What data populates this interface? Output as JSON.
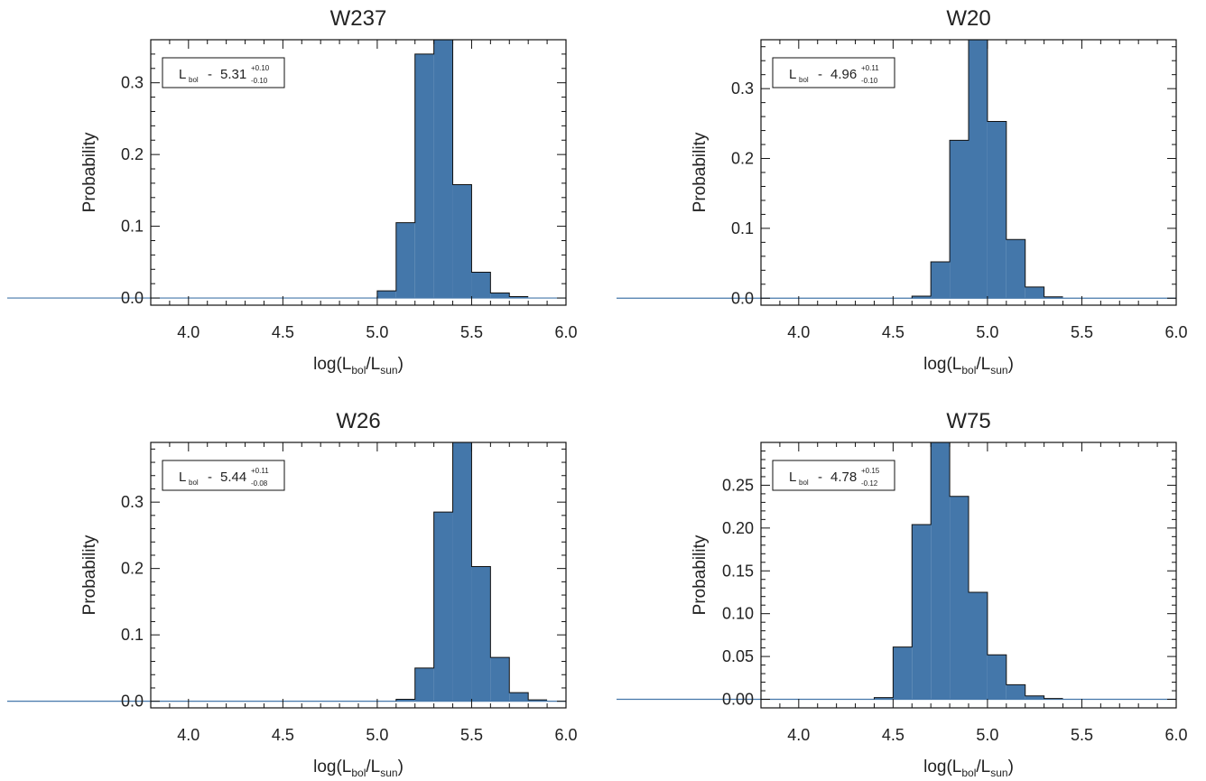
{
  "chart_data": [
    {
      "type": "bar",
      "title": "W237",
      "ylabel": "Probability",
      "xlabel": {
        "main": "log(L",
        "sub1": "bol",
        "mid": "/L",
        "sub2": "sun",
        "close": ")"
      },
      "xlim": [
        3.8,
        6.0
      ],
      "ylim": [
        -0.01,
        0.36
      ],
      "xticks": [
        4.0,
        4.5,
        5.0,
        5.5,
        6.0
      ],
      "xtick_labels": [
        "4.0",
        "4.5",
        "5.0",
        "5.5",
        "6.0"
      ],
      "yticks": [
        0.0,
        0.1,
        0.2,
        0.3
      ],
      "ytick_labels": [
        "0.0",
        "0.1",
        "0.2",
        "0.3"
      ],
      "bin_edges": [
        5.0,
        5.1,
        5.2,
        5.3,
        5.4,
        5.5,
        5.6,
        5.7,
        5.8
      ],
      "values": [
        0.01,
        0.105,
        0.34,
        0.38,
        0.158,
        0.036,
        0.007,
        0.002
      ],
      "annotation": {
        "name": "L",
        "sub": "bol",
        "sep": "-",
        "value": "5.31",
        "plus": "+0.10",
        "minus": "-0.10"
      },
      "bar_color": "#4477aa"
    },
    {
      "type": "bar",
      "title": "W20",
      "ylabel": "Probability",
      "xlabel": {
        "main": "log(L",
        "sub1": "bol",
        "mid": "/L",
        "sub2": "sun",
        "close": ")"
      },
      "xlim": [
        3.8,
        6.0
      ],
      "ylim": [
        -0.01,
        0.37
      ],
      "xticks": [
        4.0,
        4.5,
        5.0,
        5.5,
        6.0
      ],
      "xtick_labels": [
        "4.0",
        "4.5",
        "5.0",
        "5.5",
        "6.0"
      ],
      "yticks": [
        0.0,
        0.1,
        0.2,
        0.3
      ],
      "ytick_labels": [
        "0.0",
        "0.1",
        "0.2",
        "0.3"
      ],
      "bin_edges": [
        4.6,
        4.7,
        4.8,
        4.9,
        5.0,
        5.1,
        5.2,
        5.3,
        5.4
      ],
      "values": [
        0.003,
        0.052,
        0.226,
        0.38,
        0.253,
        0.084,
        0.016,
        0.002
      ],
      "annotation": {
        "name": "L",
        "sub": "bol",
        "sep": "-",
        "value": "4.96",
        "plus": "+0.11",
        "minus": "-0.10"
      },
      "bar_color": "#4477aa"
    },
    {
      "type": "bar",
      "title": "W26",
      "ylabel": "Probability",
      "xlabel": {
        "main": "log(L",
        "sub1": "bol",
        "mid": "/L",
        "sub2": "sun",
        "close": ")"
      },
      "xlim": [
        3.8,
        6.0
      ],
      "ylim": [
        -0.01,
        0.39
      ],
      "xticks": [
        4.0,
        4.5,
        5.0,
        5.5,
        6.0
      ],
      "xtick_labels": [
        "4.0",
        "4.5",
        "5.0",
        "5.5",
        "6.0"
      ],
      "yticks": [
        0.0,
        0.1,
        0.2,
        0.3
      ],
      "ytick_labels": [
        "0.0",
        "0.1",
        "0.2",
        "0.3"
      ],
      "bin_edges": [
        5.1,
        5.2,
        5.3,
        5.4,
        5.5,
        5.6,
        5.7,
        5.8,
        5.9
      ],
      "values": [
        0.003,
        0.05,
        0.285,
        0.41,
        0.203,
        0.066,
        0.013,
        0.002
      ],
      "annotation": {
        "name": "L",
        "sub": "bol",
        "sep": "-",
        "value": "5.44",
        "plus": "+0.11",
        "minus": "-0.08"
      },
      "bar_color": "#4477aa"
    },
    {
      "type": "bar",
      "title": "W75",
      "ylabel": "Probability",
      "xlabel": {
        "main": "log(L",
        "sub1": "bol",
        "mid": "/L",
        "sub2": "sun",
        "close": ")"
      },
      "xlim": [
        3.8,
        6.0
      ],
      "ylim": [
        -0.01,
        0.3
      ],
      "xticks": [
        4.0,
        4.5,
        5.0,
        5.5,
        6.0
      ],
      "xtick_labels": [
        "4.0",
        "4.5",
        "5.0",
        "5.5",
        "6.0"
      ],
      "yticks": [
        0.0,
        0.05,
        0.1,
        0.15,
        0.2,
        0.25
      ],
      "ytick_labels": [
        "0.00",
        "0.05",
        "0.10",
        "0.15",
        "0.20",
        "0.25"
      ],
      "bin_edges": [
        4.4,
        4.5,
        4.6,
        4.7,
        4.8,
        4.9,
        5.0,
        5.1,
        5.2,
        5.3,
        5.4
      ],
      "values": [
        0.002,
        0.061,
        0.204,
        0.31,
        0.237,
        0.125,
        0.052,
        0.017,
        0.004,
        0.001
      ],
      "annotation": {
        "name": "L",
        "sub": "bol",
        "sep": "-",
        "value": "4.78",
        "plus": "+0.15",
        "minus": "-0.12"
      },
      "bar_color": "#4477aa"
    }
  ]
}
